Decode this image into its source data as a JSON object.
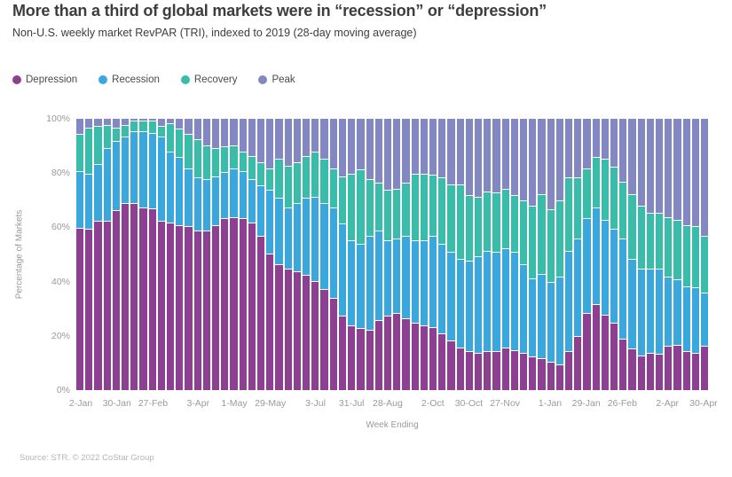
{
  "header": {
    "title": "More than a third of global markets were in “recession” or “depression”",
    "subtitle": "Non-U.S. weekly market RevPAR (TRI), indexed to 2019 (28-day moving average)"
  },
  "legend": [
    {
      "label": "Depression",
      "color": "#8d4091"
    },
    {
      "label": "Recession",
      "color": "#3aa8dc"
    },
    {
      "label": "Recovery",
      "color": "#3abcab"
    },
    {
      "label": "Peak",
      "color": "#8488c2"
    }
  ],
  "chart_data": {
    "type": "bar",
    "subtype": "stacked-100",
    "title": "More than a third of global markets were in “recession” or “depression”",
    "xlabel": "Week Ending",
    "ylabel": "Percentage of Markets",
    "ylim": [
      0,
      100
    ],
    "yticks": [
      {
        "label": "0%",
        "value": 0
      },
      {
        "label": "20%",
        "value": 20
      },
      {
        "label": "40%",
        "value": 40
      },
      {
        "label": "60%",
        "value": 60
      },
      {
        "label": "80%",
        "value": 80
      },
      {
        "label": "100%",
        "value": 100
      }
    ],
    "x_tick_labels": [
      "2-Jan",
      "30-Jan",
      "27-Feb",
      "3-Apr",
      "1-May",
      "29-May",
      "3-Jul",
      "31-Jul",
      "28-Aug",
      "2-Oct",
      "30-Oct",
      "27-Nov",
      "1-Jan",
      "29-Jan",
      "26-Feb",
      "2-Apr",
      "30-Apr"
    ],
    "x_tick_positions": [
      0,
      4,
      8,
      13,
      17,
      21,
      26,
      30,
      34,
      39,
      43,
      47,
      52,
      56,
      60,
      65,
      69
    ],
    "num_weeks": 70,
    "legend_position": "top-left",
    "grid": false,
    "series": [
      {
        "name": "Depression",
        "color": "#8d4091",
        "values": [
          59.5,
          59,
          62,
          62,
          66,
          68.5,
          68.5,
          67,
          66.5,
          62,
          61.5,
          60.5,
          60,
          58.5,
          58.5,
          60.5,
          63,
          63.5,
          63,
          61.5,
          56.5,
          50,
          46,
          44.5,
          43.5,
          42,
          40,
          37,
          33.5,
          27,
          23.5,
          22.5,
          22,
          25.5,
          27,
          28,
          26,
          24.5,
          23.5,
          23,
          20.5,
          18,
          15.5,
          14,
          13.5,
          14,
          14,
          15.5,
          14.5,
          13.5,
          12,
          11.5,
          10,
          9,
          14,
          19.5,
          28,
          31.5,
          27.5,
          24.5,
          18.5,
          15,
          12.5,
          13.5,
          13,
          16,
          16.5,
          14,
          13.5,
          16
        ]
      },
      {
        "name": "Recession",
        "color": "#3aa8dc",
        "values": [
          21,
          20.5,
          21,
          27,
          25.5,
          24.5,
          26.5,
          28,
          28,
          31,
          26,
          25,
          21.5,
          19.5,
          19,
          18,
          17,
          18,
          17.5,
          16,
          18.5,
          23.5,
          24.5,
          22.5,
          25,
          28.5,
          31,
          31.5,
          33.5,
          34,
          31.5,
          31,
          34.5,
          33,
          28,
          27.5,
          30.5,
          30.5,
          31.5,
          33.5,
          33,
          32.5,
          32.5,
          33.5,
          35.5,
          37,
          36.5,
          36.5,
          36,
          32.5,
          29,
          31,
          29.5,
          32.5,
          37,
          36,
          35,
          35.5,
          35,
          34.5,
          37,
          33,
          32,
          31,
          31.5,
          25.5,
          24,
          24,
          24,
          19.5
        ]
      },
      {
        "name": "Recovery",
        "color": "#3abcab",
        "values": [
          13.5,
          17,
          14,
          8.5,
          5,
          4.5,
          4,
          4,
          4.5,
          4,
          10.5,
          10.5,
          12.5,
          14,
          12.5,
          10.5,
          9.5,
          8.5,
          7,
          8.5,
          8.5,
          8,
          14.5,
          15.5,
          15,
          15.5,
          16.5,
          16.5,
          14.5,
          17.5,
          24.5,
          27.5,
          21,
          17.5,
          18.5,
          18.5,
          19.5,
          24.5,
          24.5,
          22.5,
          24.5,
          25,
          27.5,
          24,
          22,
          22,
          22,
          22,
          21,
          23.5,
          26.5,
          29.5,
          27,
          28,
          27,
          22.5,
          18.5,
          18.5,
          22.5,
          23,
          21,
          24,
          23,
          20.5,
          20.5,
          22,
          22,
          22.5,
          22.5,
          21
        ]
      },
      {
        "name": "Peak",
        "color": "#8488c2",
        "values": [
          6,
          3.5,
          3,
          2.5,
          3.5,
          2.5,
          1,
          1,
          1,
          3,
          2,
          4,
          6,
          8,
          10,
          11,
          10.5,
          10,
          12.5,
          14,
          16.5,
          18.5,
          15,
          17.5,
          16.5,
          14,
          12.5,
          15,
          18.5,
          21.5,
          20.5,
          19,
          22.5,
          24,
          26.5,
          26,
          24,
          20.5,
          20.5,
          21,
          22,
          24.5,
          24.5,
          28.5,
          29,
          27,
          27.5,
          26,
          28.5,
          30.5,
          32.5,
          28,
          33.5,
          30.5,
          22,
          22,
          18.5,
          14.5,
          15,
          18,
          23.5,
          28,
          32.5,
          35,
          35,
          36.5,
          37.5,
          39.5,
          40,
          43.5
        ]
      }
    ]
  },
  "footer": {
    "source": "Source: STR. © 2022 CoStar Group"
  }
}
